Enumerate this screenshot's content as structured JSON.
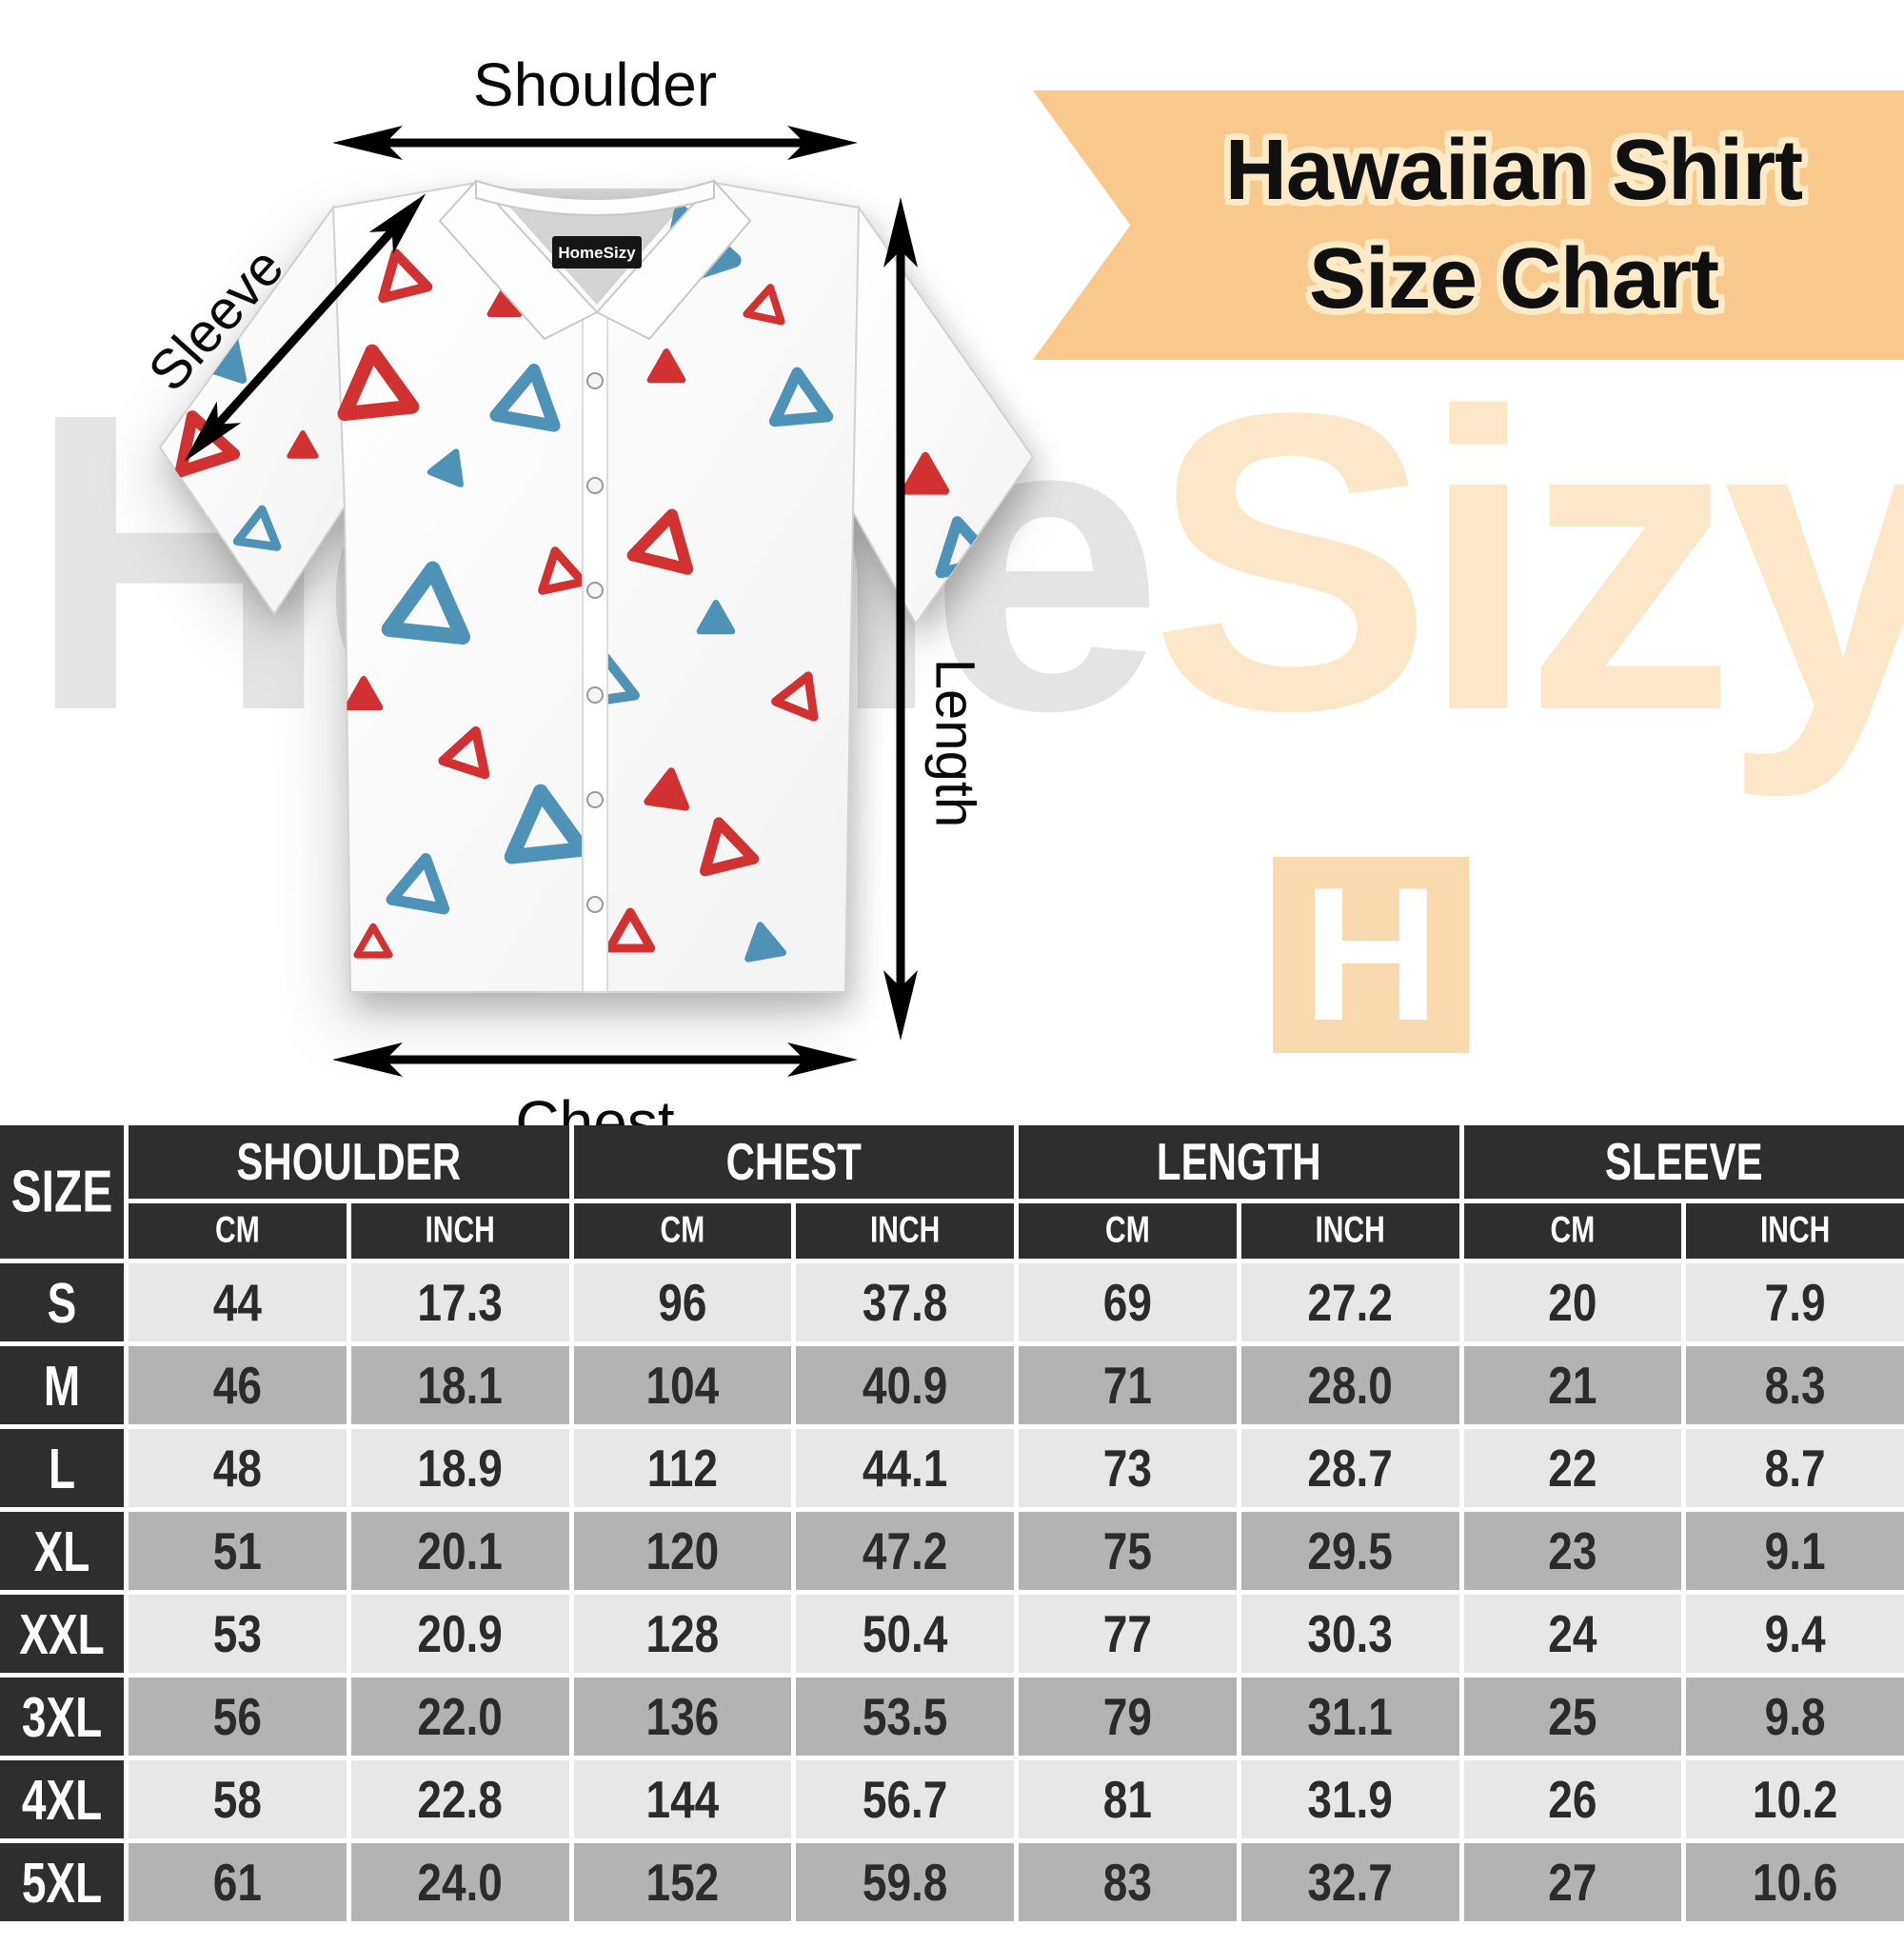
{
  "banner": {
    "line1": "Hawaiian Shirt",
    "line2": "Size Chart",
    "bg": "#f9c88d",
    "text_outline": "#fdeac6"
  },
  "watermark": {
    "word_gray": "Home",
    "word_peach": "Sizy",
    "gray_color": "#e4e4e4",
    "peach_color": "#fce7c9",
    "logo_letter": "H",
    "logo_bg": "#fbd9ae"
  },
  "shirt": {
    "collar_label": "HomeSizy",
    "pattern_red": "#d23131",
    "pattern_blue": "#4f92b8"
  },
  "labels": {
    "shoulder": "Shoulder",
    "sleeve": "Sleeve",
    "length": "Length",
    "chest": "Chest"
  },
  "table": {
    "size_header": "SIZE",
    "groups": [
      "SHOULDER",
      "CHEST",
      "LENGTH",
      "SLEEVE"
    ],
    "unit_cm": "CM",
    "unit_inch": "INCH",
    "header_bg": "#2e2e2e",
    "row_light": "#e7e7e7",
    "row_dark": "#b3b3b3",
    "rows": [
      {
        "size": "S",
        "values": [
          "44",
          "17.3",
          "96",
          "37.8",
          "69",
          "27.2",
          "20",
          "7.9"
        ]
      },
      {
        "size": "M",
        "values": [
          "46",
          "18.1",
          "104",
          "40.9",
          "71",
          "28.0",
          "21",
          "8.3"
        ]
      },
      {
        "size": "L",
        "values": [
          "48",
          "18.9",
          "112",
          "44.1",
          "73",
          "28.7",
          "22",
          "8.7"
        ]
      },
      {
        "size": "XL",
        "values": [
          "51",
          "20.1",
          "120",
          "47.2",
          "75",
          "29.5",
          "23",
          "9.1"
        ]
      },
      {
        "size": "XXL",
        "values": [
          "53",
          "20.9",
          "128",
          "50.4",
          "77",
          "30.3",
          "24",
          "9.4"
        ]
      },
      {
        "size": "3XL",
        "values": [
          "56",
          "22.0",
          "136",
          "53.5",
          "79",
          "31.1",
          "25",
          "9.8"
        ]
      },
      {
        "size": "4XL",
        "values": [
          "58",
          "22.8",
          "144",
          "56.7",
          "81",
          "31.9",
          "26",
          "10.2"
        ]
      },
      {
        "size": "5XL",
        "values": [
          "61",
          "24.0",
          "152",
          "59.8",
          "83",
          "32.7",
          "27",
          "10.6"
        ]
      }
    ]
  },
  "chart_data": {
    "type": "table",
    "title": "Hawaiian Shirt Size Chart",
    "columns": [
      "SIZE",
      "SHOULDER CM",
      "SHOULDER INCH",
      "CHEST CM",
      "CHEST INCH",
      "LENGTH CM",
      "LENGTH INCH",
      "SLEEVE CM",
      "SLEEVE INCH"
    ],
    "rows": [
      [
        "S",
        "44",
        "17.3",
        "96",
        "37.8",
        "69",
        "27.2",
        "20",
        "7.9"
      ],
      [
        "M",
        "46",
        "18.1",
        "104",
        "40.9",
        "71",
        "28.0",
        "21",
        "8.3"
      ],
      [
        "L",
        "48",
        "18.9",
        "112",
        "44.1",
        "73",
        "28.7",
        "22",
        "8.7"
      ],
      [
        "XL",
        "51",
        "20.1",
        "120",
        "47.2",
        "75",
        "29.5",
        "23",
        "9.1"
      ],
      [
        "XXL",
        "53",
        "20.9",
        "128",
        "50.4",
        "77",
        "30.3",
        "24",
        "9.4"
      ],
      [
        "3XL",
        "56",
        "22.0",
        "136",
        "53.5",
        "79",
        "31.1",
        "25",
        "9.8"
      ],
      [
        "4XL",
        "58",
        "22.8",
        "144",
        "56.7",
        "81",
        "31.9",
        "26",
        "10.2"
      ],
      [
        "5XL",
        "61",
        "24.0",
        "152",
        "59.8",
        "83",
        "32.7",
        "27",
        "10.6"
      ]
    ]
  }
}
